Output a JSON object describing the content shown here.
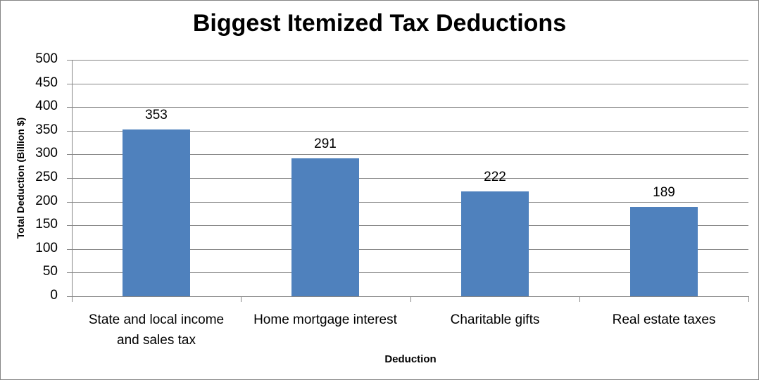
{
  "chart_data": {
    "type": "bar",
    "title": "Biggest Itemized Tax Deductions",
    "xlabel": "Deduction",
    "ylabel": "Total Deduction (Billion $)",
    "categories": [
      "State and local income and sales tax",
      "Home mortgage interest",
      "Charitable gifts",
      "Real estate taxes"
    ],
    "category_lines": [
      [
        "State and local income",
        "and sales tax"
      ],
      [
        "Home mortgage interest"
      ],
      [
        "Charitable gifts"
      ],
      [
        "Real estate taxes"
      ]
    ],
    "values": [
      353,
      291,
      222,
      189
    ],
    "data_labels": [
      "353",
      "291",
      "222",
      "189"
    ],
    "ylim": [
      0,
      500
    ],
    "yticks": [
      "0",
      "50",
      "100",
      "150",
      "200",
      "250",
      "300",
      "350",
      "400",
      "450",
      "500"
    ],
    "grid": true,
    "legend": null,
    "bar_color": "#4F81BD"
  }
}
